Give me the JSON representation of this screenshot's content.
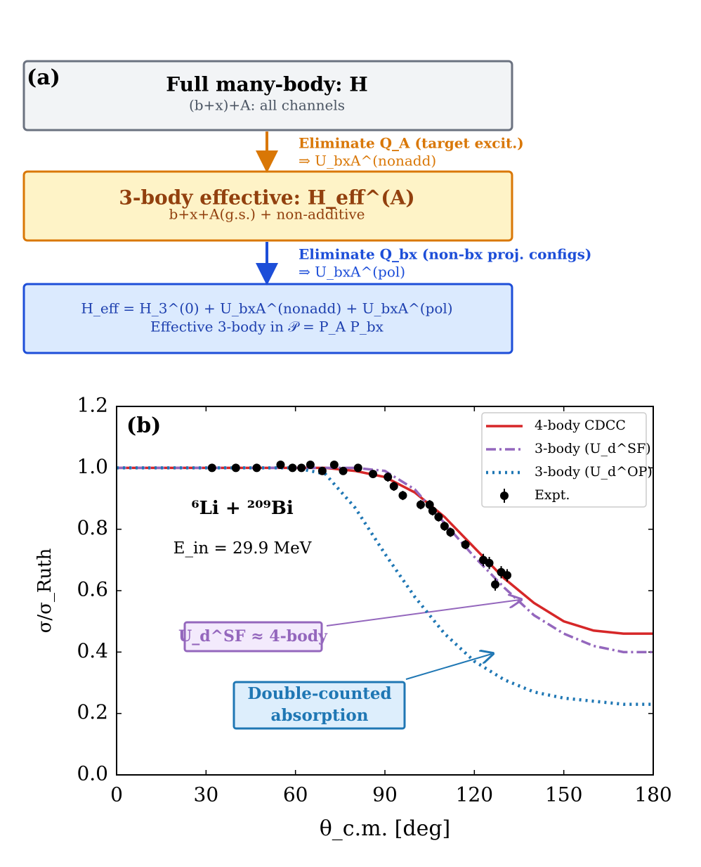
{
  "diagram": {
    "label": "(a)",
    "boxes": [
      {
        "title": "Full many-body: H",
        "subtitle": "(b+x)+A: all channels"
      },
      {
        "title": "3-body effective: H_eff^(A)",
        "subtitle": "b+x+A(g.s.) + non-additive"
      },
      {
        "title": "H_eff = H_3^(0) + U_bxA^(nonadd) + U_bxA^(pol)",
        "subtitle": "Effective 3-body in 𝒫 = P_A P_bx"
      }
    ],
    "arrows": [
      {
        "line1": "Eliminate Q_A (target excit.)",
        "line2": "⇒ U_bxA^(nonadd)"
      },
      {
        "line1": "Eliminate Q_bx (non-bx proj. configs)",
        "line2": "⇒ U_bxA^(pol)"
      }
    ]
  },
  "chart_data": {
    "type": "line",
    "label": "(b)",
    "xlabel": "θ_c.m. [deg]",
    "ylabel": "σ/σ_Ruth",
    "xlim": [
      0,
      180
    ],
    "ylim": [
      0,
      1.2
    ],
    "xticks": [
      0,
      30,
      60,
      90,
      120,
      150,
      180
    ],
    "yticks": [
      {
        "value": 0,
        "label": "0.0"
      },
      0.2,
      0.4,
      0.6,
      0.8,
      {
        "value": 1,
        "label": "1.0"
      },
      1.2
    ],
    "legend": "upper right",
    "annotations": [
      "⁶Li + ²⁰⁹Bi",
      "E_in = 29.9 MeV",
      "U_d^SF ≈ 4-body",
      "Double-counted",
      "absorption"
    ],
    "series": [
      {
        "name": "4-body CDCC",
        "color": "#d62728",
        "style": "solid",
        "x": [
          0,
          10,
          20,
          30,
          40,
          50,
          60,
          70,
          80,
          90,
          100,
          110,
          120,
          130,
          140,
          150,
          160,
          170,
          180
        ],
        "values": [
          1.0,
          1.0,
          1.0,
          1.0,
          1.0,
          1.0,
          1.0,
          1.0,
          0.99,
          0.97,
          0.92,
          0.84,
          0.74,
          0.64,
          0.56,
          0.5,
          0.47,
          0.46,
          0.46
        ]
      },
      {
        "name": "3-body (U_d^SF)",
        "color": "#9467bd",
        "style": "dashdot",
        "x": [
          0,
          10,
          20,
          30,
          40,
          50,
          60,
          70,
          80,
          90,
          100,
          110,
          120,
          130,
          140,
          150,
          160,
          170,
          180
        ],
        "values": [
          1.0,
          1.0,
          1.0,
          1.0,
          1.0,
          1.0,
          1.0,
          1.0,
          1.0,
          0.99,
          0.93,
          0.82,
          0.71,
          0.61,
          0.52,
          0.46,
          0.42,
          0.4,
          0.4
        ]
      },
      {
        "name": "3-body (U_d^OP)",
        "color": "#1f77b4",
        "style": "dotted",
        "x": [
          0,
          10,
          20,
          30,
          40,
          50,
          60,
          70,
          80,
          90,
          100,
          110,
          120,
          130,
          140,
          150,
          160,
          170,
          180
        ],
        "values": [
          1.0,
          1.0,
          1.0,
          1.0,
          1.0,
          1.0,
          1.0,
          0.98,
          0.87,
          0.72,
          0.58,
          0.46,
          0.37,
          0.31,
          0.27,
          0.25,
          0.24,
          0.23,
          0.23
        ]
      },
      {
        "name": "Expt.",
        "color": "#000000",
        "style": "errorbar",
        "x": [
          32,
          40,
          47,
          55,
          59,
          62,
          65,
          69,
          73,
          76,
          81,
          86,
          91,
          93,
          96,
          102,
          105,
          106,
          108,
          110,
          112,
          117,
          123,
          125,
          127,
          129,
          131
        ],
        "values": [
          1.0,
          1.0,
          1.0,
          1.01,
          1.0,
          1.0,
          1.01,
          0.99,
          1.01,
          0.99,
          1.0,
          0.98,
          0.97,
          0.94,
          0.91,
          0.88,
          0.88,
          0.86,
          0.84,
          0.81,
          0.79,
          0.75,
          0.7,
          0.69,
          0.62,
          0.66,
          0.65
        ],
        "errors": [
          0.01,
          0.01,
          0.01,
          0.01,
          0.01,
          0.01,
          0.01,
          0.01,
          0.01,
          0.01,
          0.01,
          0.01,
          0.015,
          0.015,
          0.015,
          0.015,
          0.015,
          0.015,
          0.015,
          0.015,
          0.015,
          0.015,
          0.02,
          0.02,
          0.02,
          0.02,
          0.02
        ]
      }
    ]
  }
}
